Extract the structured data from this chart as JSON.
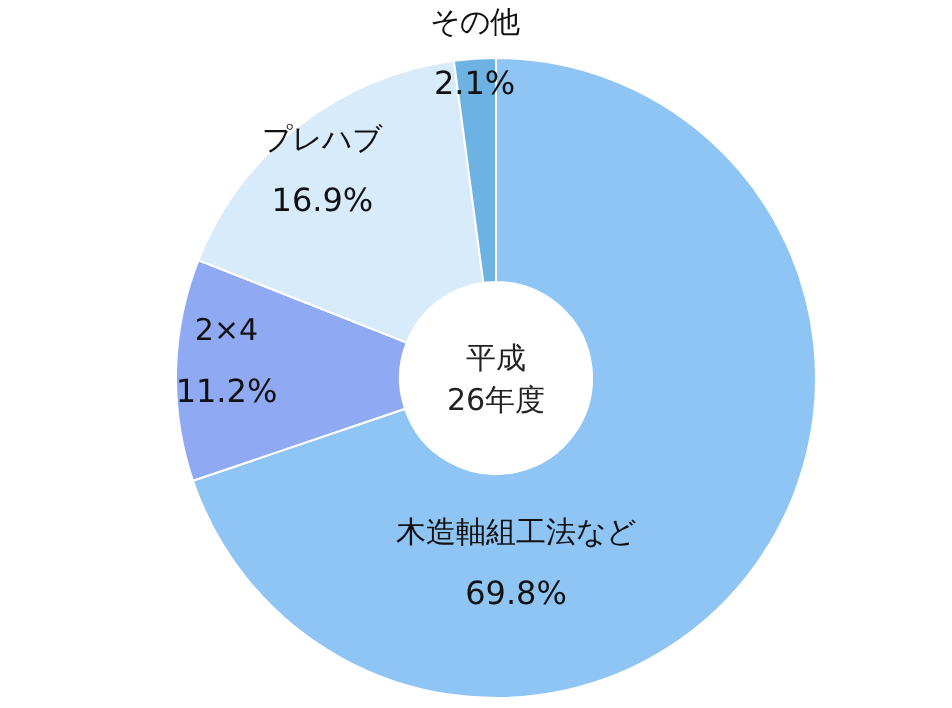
{
  "chart_data": {
    "type": "donut",
    "title": "平成\n26年度",
    "categories": [
      "木造軸組工法など",
      "2×4",
      "プレハブ",
      "その他"
    ],
    "values": [
      69.8,
      11.2,
      16.9,
      2.1
    ],
    "value_labels": [
      "69.8%",
      "11.2%",
      "16.9%",
      "2.1%"
    ],
    "colors": [
      "#8ec5f5",
      "#8fa9f3",
      "#d8ebfb",
      "#6cb2e2"
    ]
  }
}
